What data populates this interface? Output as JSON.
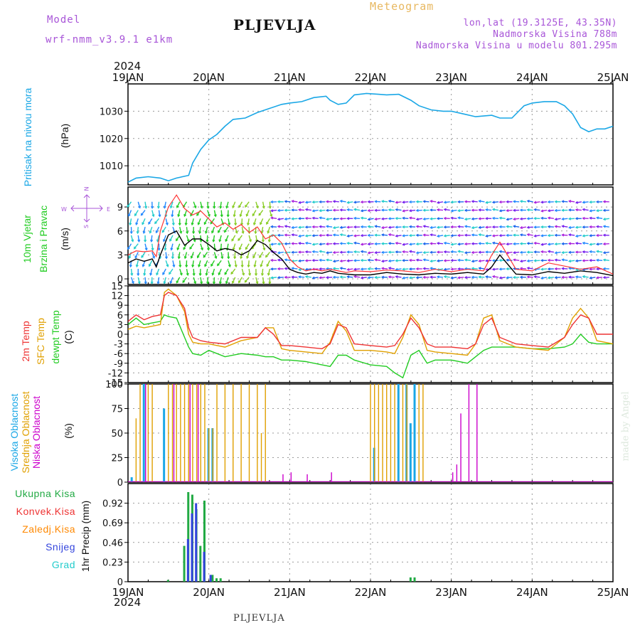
{
  "header": {
    "model_label": "Model",
    "model_name": "wrf-nmm_v3.9.1 e1km",
    "title": "PLJEVLJA",
    "meteogram_label": "Meteogram",
    "lonlat": "lon,lat (19.3125E, 43.35N)",
    "elevation": "Nadmorska Visina 788m",
    "model_elevation": "Nadmorska Visina u modelu 801.295m",
    "year_top": "2024",
    "year_bottom": "2024",
    "footer_station": "PLJEVLJA",
    "watermark": "made by Angel"
  },
  "colors": {
    "pressure": "#1aa7e6",
    "wind_speed_avg": "#000000",
    "wind_gust": "#ff3333",
    "temp2m": "#ee3333",
    "sfc_temp": "#e0a000",
    "dewpoint": "#22cc22",
    "cloud_high": "#1aa7e6",
    "cloud_mid": "#e0a000",
    "cloud_low": "#cc00cc",
    "precip_total": "#22aa44",
    "precip_conv": "#ee3333",
    "precip_frozen": "#ff8800",
    "precip_snow": "#3344dd",
    "precip_graupel": "#22cccc"
  },
  "x_axis": {
    "tick_labels": [
      "19JAN",
      "20JAN",
      "21JAN",
      "22JAN",
      "23JAN",
      "24JAN",
      "25JAN"
    ],
    "range_days": [
      0,
      6
    ]
  },
  "panels": {
    "pressure": {
      "label": "Pritisak na nivou mora",
      "unit": "(hPa)"
    },
    "wind": {
      "label_1": "10m Vjetar",
      "label_2": "Brzina i Pravac",
      "unit": "(m/s)",
      "compass": {
        "n": "N",
        "s": "S",
        "w": "W",
        "e": "E"
      }
    },
    "temperature": {
      "label_1": "2m Temp",
      "label_2": "SFC Temp",
      "label_3": "dewpt Temp",
      "unit": "(C)"
    },
    "cloud": {
      "label_1": "Visoka Oblacnost",
      "label_2": "Srednja Oblacnost",
      "label_3": "Niska Oblacnost",
      "unit": "(%)"
    },
    "precip": {
      "legend": [
        "Ukupna Kisa",
        "Konvek.Kisa",
        "Zaledj.Kisa",
        "Snijeg",
        "Grad"
      ],
      "unit": "1hr Precip (mm)"
    }
  },
  "chart_data": [
    {
      "type": "line",
      "panel": "pressure",
      "ylabel": "Pritisak na nivou mora (hPa)",
      "ylim": [
        1003,
        1040
      ],
      "y_ticks": [
        "1010",
        "1020",
        "1030"
      ],
      "y_tick_values": [
        1010,
        1020,
        1030
      ],
      "x": [
        0,
        0.1,
        0.25,
        0.4,
        0.5,
        0.6,
        0.75,
        0.8,
        0.9,
        1.0,
        1.1,
        1.2,
        1.3,
        1.45,
        1.6,
        1.75,
        1.9,
        2.0,
        2.15,
        2.3,
        2.45,
        2.5,
        2.6,
        2.7,
        2.8,
        2.95,
        3.1,
        3.2,
        3.35,
        3.5,
        3.6,
        3.75,
        3.9,
        4.0,
        4.15,
        4.3,
        4.5,
        4.6,
        4.75,
        4.9,
        5.0,
        5.15,
        5.3,
        5.4,
        5.5,
        5.6,
        5.7,
        5.8,
        5.9,
        6.0
      ],
      "series": [
        {
          "name": "",
          "values": [
            1004,
            1005.5,
            1006,
            1005.5,
            1004.5,
            1005.5,
            1006.5,
            1011,
            1016,
            1019.5,
            1021.5,
            1024.5,
            1027,
            1027.5,
            1029.5,
            1031,
            1032.5,
            1033,
            1033.5,
            1035,
            1035.5,
            1034,
            1032.5,
            1033,
            1036,
            1036.5,
            1036.2,
            1036,
            1036.2,
            1034,
            1032,
            1030.5,
            1030,
            1030,
            1029,
            1028,
            1028.5,
            1027.5,
            1027.5,
            1032,
            1033,
            1033.5,
            1033.5,
            1032,
            1029,
            1024,
            1022.5,
            1023.5,
            1023.5,
            1024.5
          ]
        }
      ]
    },
    {
      "type": "line",
      "panel": "wind",
      "ylabel": "10m Vjetar Brzina i Pravac (m/s)",
      "ylim": [
        -0.7,
        11.5
      ],
      "y_ticks": [
        "0",
        "3",
        "6",
        "9"
      ],
      "y_tick_values": [
        0,
        3,
        6,
        9
      ],
      "x": [
        0,
        0.1,
        0.2,
        0.3,
        0.35,
        0.4,
        0.5,
        0.6,
        0.7,
        0.8,
        0.9,
        1.0,
        1.1,
        1.2,
        1.3,
        1.4,
        1.5,
        1.6,
        1.7,
        1.8,
        1.9,
        2.0,
        2.1,
        2.2,
        2.3,
        2.4,
        2.5,
        2.6,
        2.7,
        2.8,
        3.0,
        3.2,
        3.4,
        3.6,
        3.8,
        4.0,
        4.2,
        4.4,
        4.5,
        4.6,
        4.8,
        5.0,
        5.2,
        5.4,
        5.6,
        5.8,
        6.0
      ],
      "series": [
        {
          "name": "",
          "values": [
            2,
            2.5,
            2.2,
            2.5,
            1.5,
            3,
            5.5,
            6,
            4.2,
            5,
            5,
            4.3,
            3.5,
            3.8,
            3.6,
            3,
            3.5,
            4.8,
            4.3,
            3.3,
            2.5,
            1.2,
            0.8,
            0.6,
            0.8,
            0.7,
            1,
            0.7,
            0.6,
            0.5,
            0.5,
            0.8,
            0.6,
            0.5,
            0.7,
            0.6,
            0.8,
            0.6,
            1.5,
            3,
            0.6,
            0.5,
            0.9,
            0.7,
            1,
            0.8,
            0.4
          ]
        },
        {
          "name": "",
          "values": [
            3,
            3.5,
            3.4,
            3.5,
            2.8,
            6,
            9,
            10.5,
            8.8,
            8,
            8.5,
            7.5,
            6.5,
            7,
            6.2,
            6.8,
            5.8,
            6.5,
            5,
            5.5,
            4.5,
            2.5,
            1.5,
            1,
            1.2,
            1,
            1.2,
            1,
            0.8,
            1,
            0.9,
            1.1,
            1,
            0.8,
            1.2,
            0.9,
            1.2,
            1,
            3,
            4.6,
            1.2,
            1,
            2,
            1.6,
            1.2,
            1.5,
            0.6
          ]
        }
      ]
    },
    {
      "type": "line",
      "panel": "temperature",
      "ylabel": "Temp (C)",
      "ylim": [
        -15,
        15
      ],
      "y_ticks": [
        "15",
        "12",
        "9",
        "6",
        "3",
        "0",
        "-3",
        "-6",
        "-9",
        "-12",
        "-15"
      ],
      "y_tick_values": [
        15,
        12,
        9,
        6,
        3,
        0,
        -3,
        -6,
        -9,
        -12,
        -15
      ],
      "x": [
        0,
        0.1,
        0.2,
        0.3,
        0.4,
        0.45,
        0.5,
        0.6,
        0.7,
        0.75,
        0.8,
        0.9,
        1.0,
        1.2,
        1.4,
        1.6,
        1.7,
        1.8,
        1.9,
        2.0,
        2.2,
        2.4,
        2.5,
        2.6,
        2.7,
        2.8,
        3.0,
        3.2,
        3.3,
        3.4,
        3.5,
        3.6,
        3.7,
        3.8,
        4.0,
        4.2,
        4.3,
        4.4,
        4.5,
        4.6,
        4.8,
        5.0,
        5.2,
        5.4,
        5.5,
        5.6,
        5.7,
        5.8,
        6.0
      ],
      "series": [
        {
          "name": "2m Temp",
          "values": [
            4,
            6,
            4.5,
            5.5,
            6,
            12,
            13,
            12,
            8,
            2,
            -1,
            -2,
            -2.5,
            -3,
            -1,
            -1,
            2,
            0,
            -3.5,
            -3.5,
            -4,
            -4.5,
            -3,
            3,
            2,
            -3,
            -3.5,
            -4,
            -3.5,
            0,
            5,
            2,
            -3,
            -4,
            -4,
            -4.5,
            -3,
            3,
            5,
            -1,
            -3,
            -3.5,
            -4,
            -1,
            3,
            6,
            5,
            0,
            0
          ]
        },
        {
          "name": "SFC Temp",
          "values": [
            1.5,
            2.5,
            2,
            2.5,
            3,
            13,
            14,
            12,
            7,
            0,
            -2.5,
            -3,
            -3,
            -4,
            -2,
            -1,
            2,
            2,
            -4.5,
            -5,
            -5.5,
            -6,
            -2.5,
            4,
            1,
            -5,
            -5,
            -5.5,
            -6,
            -1,
            6,
            3,
            -5,
            -5.5,
            -6,
            -6.5,
            -3,
            5,
            6,
            -2,
            -4,
            -4.5,
            -5,
            -1,
            5,
            8,
            5,
            -2,
            -3
          ]
        },
        {
          "name": "dewpt Temp",
          "values": [
            3,
            5,
            3,
            3.5,
            4,
            6,
            5.5,
            5,
            -1,
            -4,
            -6,
            -6.5,
            -5,
            -7,
            -6,
            -6.5,
            -7,
            -7,
            -8,
            -8,
            -8.5,
            -9.5,
            -10,
            -6.5,
            -6.5,
            -8,
            -9.5,
            -10,
            -12,
            -13.5,
            -6.5,
            -5,
            -9,
            -8,
            -8,
            -9,
            -7,
            -5,
            -4,
            -4,
            -4,
            -4.5,
            -4.5,
            -4,
            -3,
            0,
            -2.5,
            -3,
            -3
          ]
        }
      ]
    },
    {
      "type": "bar",
      "panel": "cloud",
      "ylabel": "Oblacnost (%)",
      "ylim": [
        0,
        100
      ],
      "y_ticks": [
        "0",
        "25",
        "50",
        "75",
        "100"
      ],
      "y_tick_values": [
        0,
        25,
        50,
        75,
        100
      ],
      "series": [
        {
          "name": "Visoka Oblacnost",
          "x": [
            0.05,
            0.2,
            0.45,
            1.0,
            1.05,
            3.05,
            3.35,
            3.45,
            3.5,
            3.55
          ],
          "values": [
            5,
            100,
            75,
            55,
            55,
            35,
            100,
            100,
            60,
            100
          ]
        },
        {
          "name": "Srednja Oblacnost",
          "x": [
            0.1,
            0.15,
            0.25,
            0.3,
            0.5,
            0.55,
            0.6,
            0.65,
            0.7,
            0.75,
            0.8,
            0.85,
            0.9,
            0.95,
            1.0,
            1.05,
            1.1,
            1.2,
            1.3,
            1.4,
            1.5,
            1.6,
            1.65,
            1.7,
            3.0,
            3.05,
            3.1,
            3.15,
            3.2,
            3.25,
            3.3,
            3.4,
            3.45,
            3.6,
            3.65
          ],
          "values": [
            65,
            100,
            100,
            100,
            100,
            100,
            100,
            100,
            100,
            100,
            100,
            100,
            100,
            100,
            55,
            55,
            100,
            100,
            100,
            100,
            100,
            100,
            50,
            100,
            100,
            100,
            100,
            100,
            100,
            100,
            100,
            100,
            100,
            100,
            100
          ]
        },
        {
          "name": "Niska Oblacnost",
          "x": [
            0.2,
            0.55,
            0.75,
            0.85,
            1.9,
            2.0,
            2.2,
            2.5,
            4.0,
            4.05,
            4.1,
            4.2,
            4.3
          ],
          "values": [
            100,
            100,
            100,
            100,
            8,
            10,
            8,
            10,
            10,
            18,
            70,
            100,
            100
          ]
        }
      ]
    },
    {
      "type": "bar",
      "panel": "precip",
      "ylabel": "1hr Precip (mm)",
      "ylim": [
        0,
        1.15
      ],
      "y_ticks": [
        "0",
        "0.23",
        "0.46",
        "0.69",
        "0.92"
      ],
      "y_tick_values": [
        0,
        0.23,
        0.46,
        0.69,
        0.92
      ],
      "series": [
        {
          "name": "Ukupna Kisa",
          "x": [
            0.5,
            0.7,
            0.75,
            0.8,
            0.85,
            0.9,
            0.95,
            1.05,
            1.1,
            1.15,
            3.5,
            3.55
          ],
          "values": [
            0.02,
            0.42,
            1.05,
            1.02,
            0.85,
            0.42,
            0.95,
            0.08,
            0.04,
            0.04,
            0.05,
            0.05
          ]
        },
        {
          "name": "Snijeg",
          "x": [
            0.72,
            0.77,
            0.82,
            0.92,
            1.0
          ],
          "values": [
            0.5,
            0.8,
            0.92,
            0.35,
            0.08
          ]
        }
      ]
    }
  ]
}
